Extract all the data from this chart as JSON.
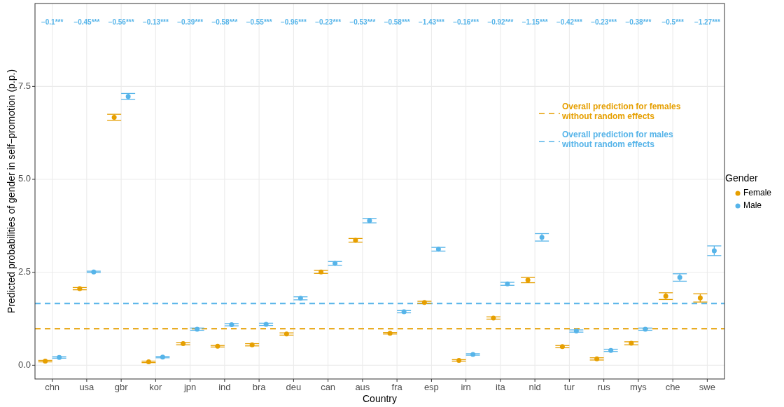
{
  "chart_data": {
    "type": "scatter",
    "xlabel": "Country",
    "ylabel": "Predicted probabilities of gender in self−promotion (p.p.)",
    "legend_title": "Gender",
    "legend": "right",
    "grid": true,
    "marker": "circle",
    "categories": [
      "chn",
      "usa",
      "gbr",
      "kor",
      "jpn",
      "ind",
      "bra",
      "deu",
      "can",
      "aus",
      "fra",
      "esp",
      "irn",
      "ita",
      "nld",
      "tur",
      "rus",
      "mys",
      "che",
      "swe"
    ],
    "ylim": [
      -0.37,
      9.73
    ],
    "yticks": [
      {
        "value": 0,
        "label": "0.0"
      },
      {
        "value": 2.5,
        "label": "2.5"
      },
      {
        "value": 5,
        "label": "5.0"
      },
      {
        "value": 7.5,
        "label": "7.5"
      }
    ],
    "series": [
      {
        "name": "Female",
        "color": "#e69f00",
        "values": [
          0.11,
          2.06,
          6.67,
          0.09,
          0.58,
          0.51,
          0.55,
          0.84,
          2.51,
          3.36,
          0.86,
          1.69,
          0.13,
          1.27,
          2.29,
          0.5,
          0.17,
          0.59,
          1.86,
          1.81
        ],
        "errors": [
          0.02,
          0.03,
          0.08,
          0.02,
          0.03,
          0.02,
          0.03,
          0.03,
          0.04,
          0.05,
          0.02,
          0.03,
          0.02,
          0.03,
          0.07,
          0.03,
          0.03,
          0.04,
          0.09,
          0.11
        ]
      },
      {
        "name": "Male",
        "color": "#56b4e9",
        "values": [
          0.21,
          2.51,
          7.23,
          0.22,
          0.97,
          1.09,
          1.1,
          1.8,
          2.74,
          3.89,
          1.44,
          3.12,
          0.29,
          2.19,
          3.44,
          0.92,
          0.4,
          0.97,
          2.36,
          3.08
        ],
        "errors": [
          0.02,
          0.02,
          0.08,
          0.02,
          0.03,
          0.03,
          0.03,
          0.04,
          0.05,
          0.06,
          0.03,
          0.05,
          0.02,
          0.04,
          0.1,
          0.03,
          0.03,
          0.03,
          0.1,
          0.13
        ]
      }
    ],
    "ref_lines": [
      {
        "axis": "y",
        "value": 0.98,
        "label": "Overall prediction for females\nwithout random effects",
        "color": "#e69f00",
        "line_style": "dashed"
      },
      {
        "axis": "y",
        "value": 1.66,
        "label": "Overall prediction for males\nwithout random effects",
        "color": "#56b4e9",
        "line_style": "dashed"
      }
    ],
    "annotations": [
      "−0.1***",
      "−0.45***",
      "−0.56***",
      "−0.13***",
      "−0.39***",
      "−0.58***",
      "−0.55***",
      "−0.96***",
      "−0.23***",
      "−0.53***",
      "−0.58***",
      "−1.43***",
      "−0.16***",
      "−0.92***",
      "−1.15***",
      "−0.42***",
      "−0.23***",
      "−0.38***",
      "−0.5***",
      "−1.27***"
    ]
  }
}
